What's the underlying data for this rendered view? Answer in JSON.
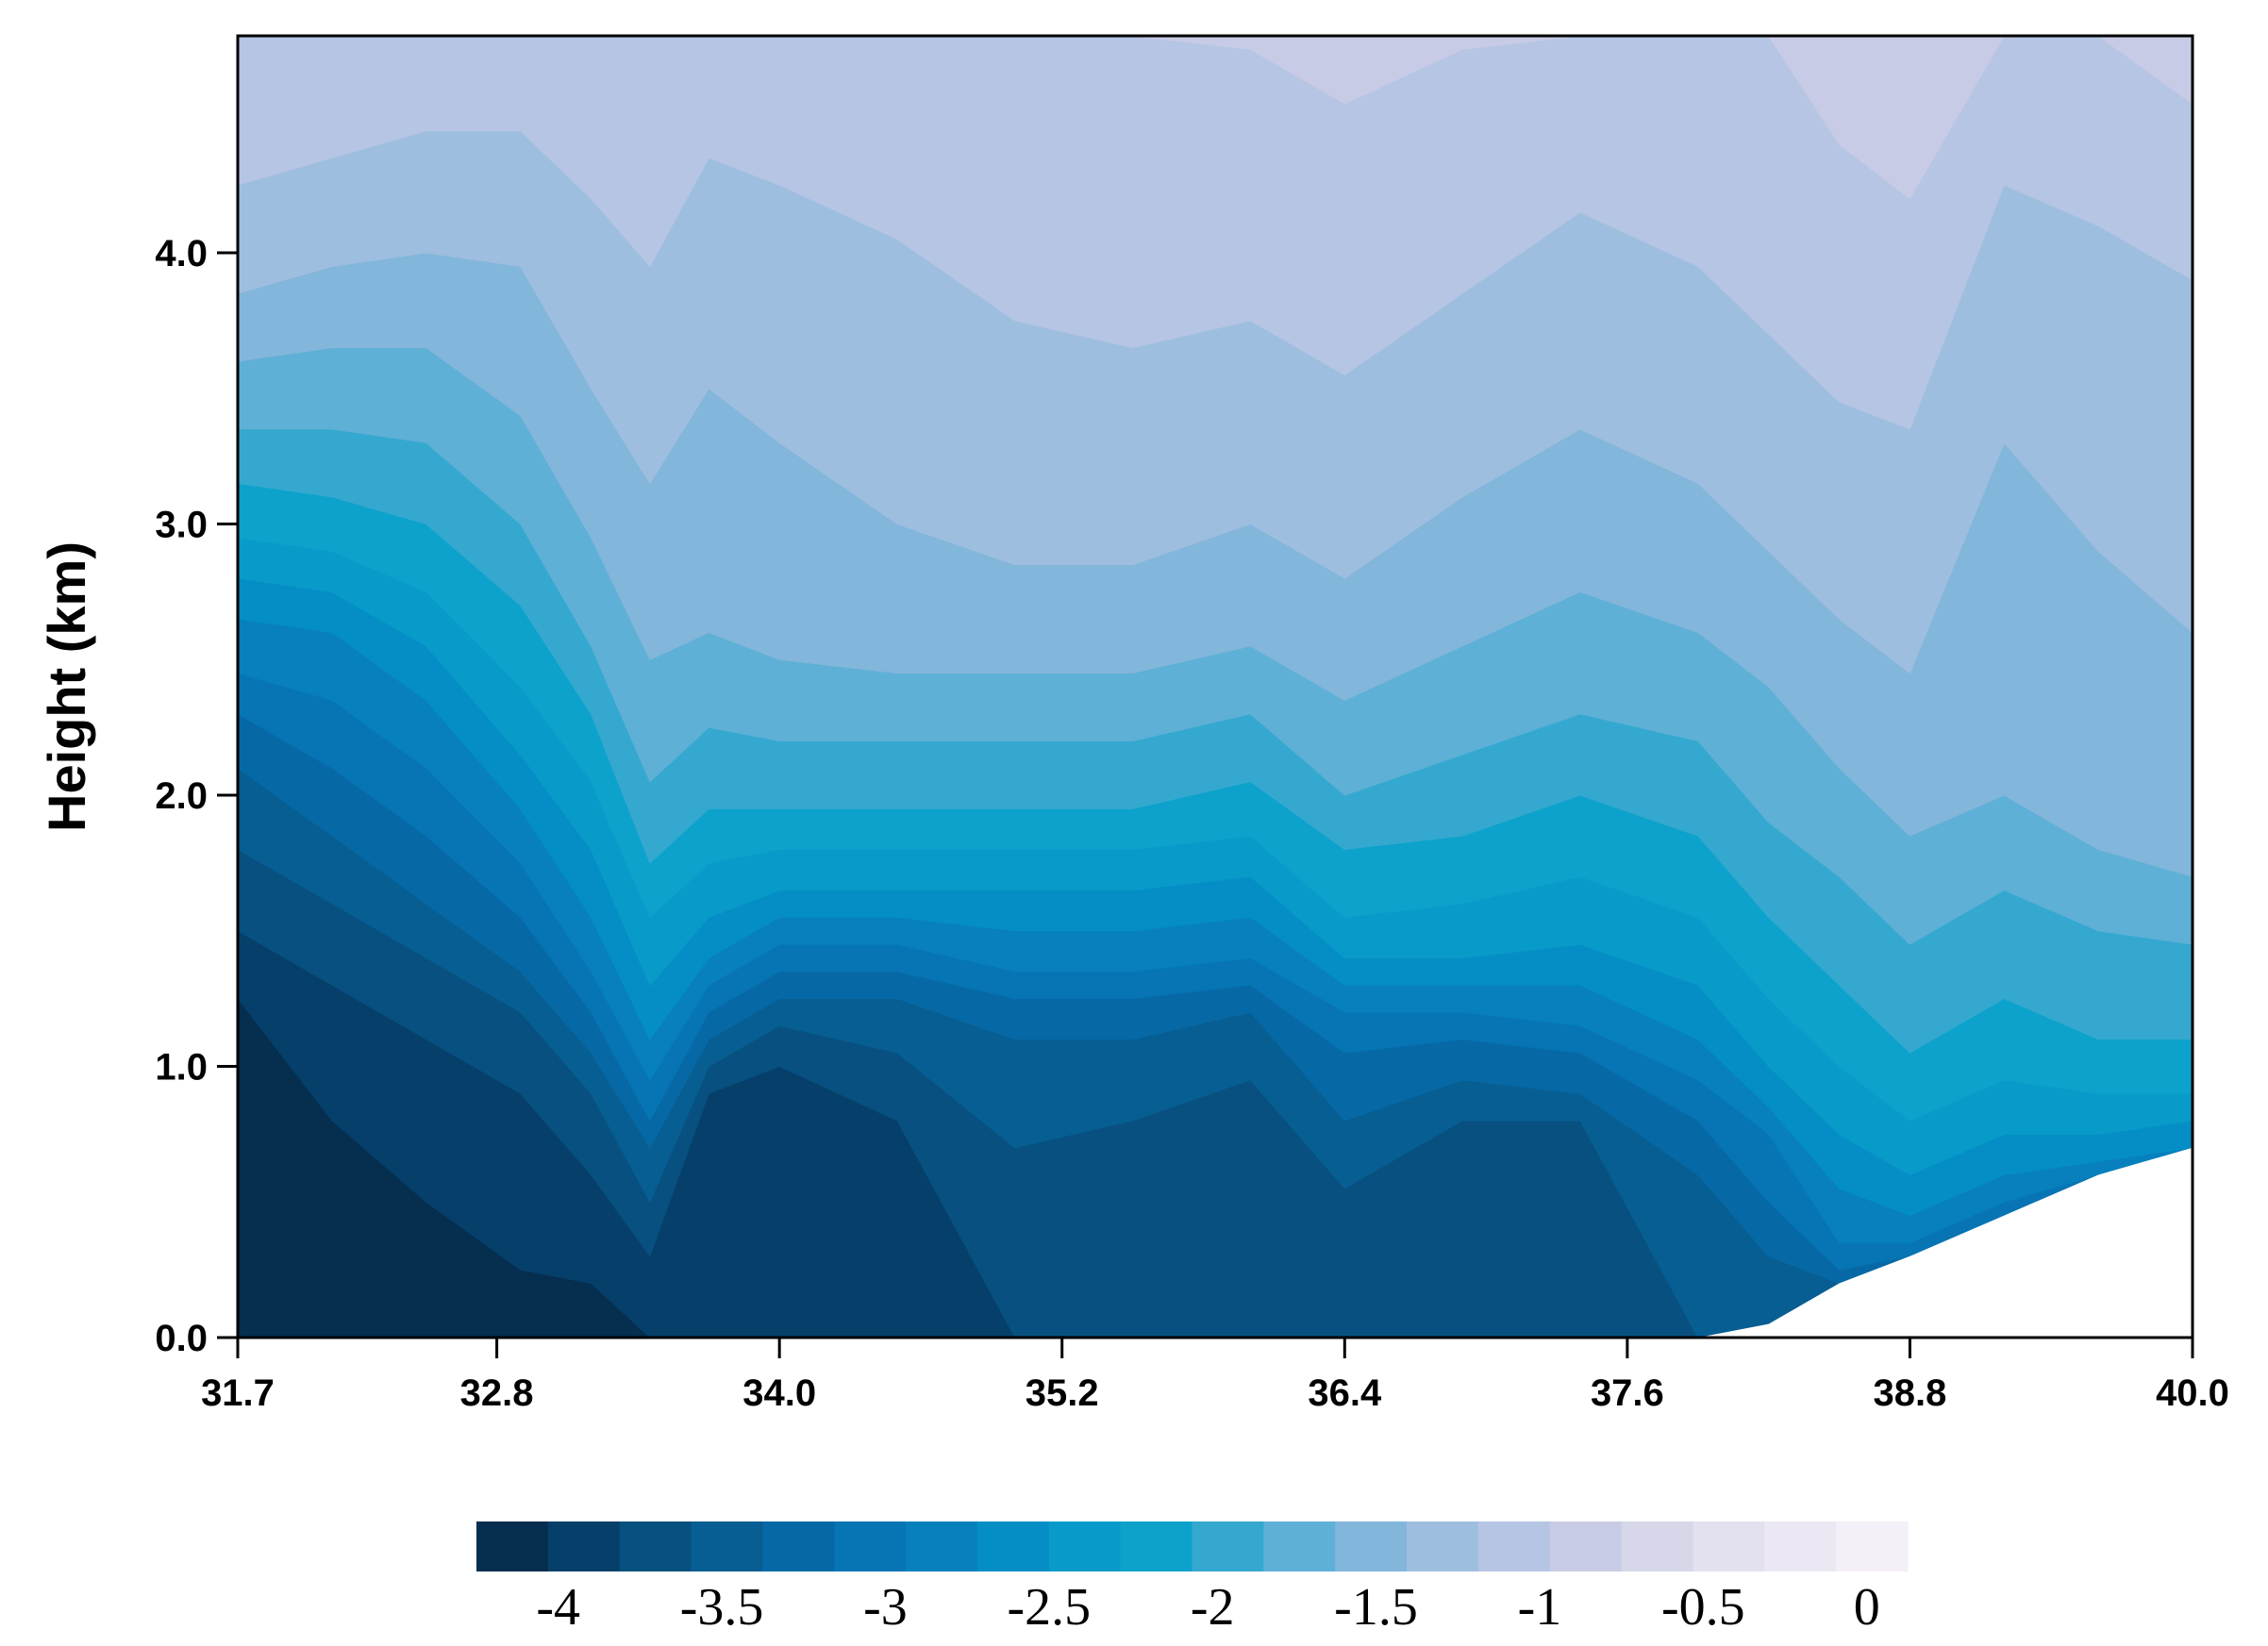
{
  "chart_data": {
    "type": "contour",
    "xlabel": "",
    "ylabel": "Height (km)",
    "xlim": [
      31.7,
      40.0
    ],
    "ylim": [
      0.0,
      4.8
    ],
    "x_ticks": [
      "31.7",
      "32.8",
      "34.0",
      "35.2",
      "36.4",
      "37.6",
      "38.8",
      "40.0"
    ],
    "y_ticks": [
      "0.0",
      "1.0",
      "2.0",
      "3.0",
      "4.0"
    ],
    "colorbar": {
      "min": -4.25,
      "max": 0.125,
      "step": 0.25,
      "ticks": [
        "-4",
        "-3.5",
        "-3",
        "-2.5",
        "-2",
        "-1.5",
        "-1",
        "-0.5",
        "0"
      ],
      "colors": [
        "#052e4f",
        "#063f6a",
        "#07507f",
        "#075e92",
        "#0669a5",
        "#0774b4",
        "#0780bd",
        "#058ec6",
        "#089bc9",
        "#0ca2cb",
        "#35a8d0",
        "#5eb0d6",
        "#82b6da",
        "#9ebedf",
        "#b5c5e3",
        "#c8cbe5",
        "#d7d7ea",
        "#e3e1ef",
        "#ece8f3",
        "#f5eff7"
      ]
    },
    "field": {
      "x": [
        31.7,
        32.1,
        32.5,
        32.9,
        33.2,
        33.45,
        33.7,
        34.0,
        34.5,
        35.0,
        35.5,
        36.0,
        36.4,
        36.9,
        37.4,
        37.9,
        38.2,
        38.5,
        38.8,
        39.2,
        39.6,
        40.0
      ],
      "surface_height_km": [
        0,
        0,
        0,
        0,
        0,
        0,
        0,
        0,
        0,
        0,
        0,
        0,
        0,
        0,
        0,
        0,
        0.05,
        0.2,
        0.3,
        0.45,
        0.6,
        0.7
      ],
      "levels": [
        -4.0,
        -3.75,
        -3.5,
        -3.25,
        -3.0,
        -2.75,
        -2.5,
        -2.25,
        -2.0,
        -1.75,
        -1.5,
        -1.25,
        -1.0,
        -0.75,
        -0.5,
        -0.25
      ],
      "contour_heights_km": [
        [
          1.25,
          0.8,
          0.5,
          0.25,
          0.2,
          0,
          0,
          0,
          0,
          0,
          0,
          0,
          0,
          0,
          0,
          0,
          0,
          0,
          0,
          0,
          0,
          0
        ],
        [
          1.5,
          1.3,
          1.1,
          0.9,
          0.6,
          0.3,
          0.9,
          1.0,
          0.8,
          0.0,
          0.0,
          0.0,
          0.0,
          0.0,
          0.0,
          0.0,
          0,
          0,
          0,
          0,
          0,
          0
        ],
        [
          1.8,
          1.6,
          1.4,
          1.2,
          0.9,
          0.5,
          1.0,
          1.15,
          1.05,
          0.7,
          0.8,
          0.95,
          0.55,
          0.8,
          0.8,
          0.0,
          0,
          0,
          0,
          0,
          0,
          0
        ],
        [
          2.1,
          1.85,
          1.6,
          1.35,
          1.05,
          0.7,
          1.1,
          1.25,
          1.25,
          1.1,
          1.1,
          1.2,
          0.8,
          0.95,
          0.9,
          0.6,
          0.3,
          0.2,
          0.3,
          0.45,
          0.6,
          0.7
        ],
        [
          2.3,
          2.1,
          1.85,
          1.55,
          1.2,
          0.8,
          1.2,
          1.35,
          1.35,
          1.25,
          1.25,
          1.3,
          1.05,
          1.1,
          1.05,
          0.8,
          0.5,
          0.25,
          0.3,
          0.45,
          0.6,
          0.7
        ],
        [
          2.45,
          2.35,
          2.1,
          1.75,
          1.35,
          0.95,
          1.3,
          1.45,
          1.45,
          1.35,
          1.35,
          1.4,
          1.2,
          1.2,
          1.15,
          0.95,
          0.75,
          0.35,
          0.35,
          0.5,
          0.6,
          0.7
        ],
        [
          2.65,
          2.6,
          2.35,
          1.95,
          1.55,
          1.1,
          1.4,
          1.55,
          1.55,
          1.5,
          1.5,
          1.55,
          1.3,
          1.3,
          1.3,
          1.1,
          0.85,
          0.55,
          0.45,
          0.6,
          0.65,
          0.7
        ],
        [
          2.8,
          2.75,
          2.55,
          2.15,
          1.8,
          1.3,
          1.55,
          1.65,
          1.65,
          1.65,
          1.65,
          1.7,
          1.4,
          1.4,
          1.45,
          1.3,
          1.0,
          0.75,
          0.6,
          0.75,
          0.75,
          0.8
        ],
        [
          2.95,
          2.9,
          2.75,
          2.4,
          2.05,
          1.55,
          1.75,
          1.8,
          1.8,
          1.8,
          1.8,
          1.85,
          1.55,
          1.6,
          1.7,
          1.55,
          1.25,
          1.0,
          0.8,
          0.95,
          0.9,
          0.9
        ],
        [
          3.15,
          3.1,
          3.0,
          2.7,
          2.3,
          1.75,
          1.95,
          1.95,
          1.95,
          1.95,
          1.95,
          2.05,
          1.8,
          1.85,
          2.0,
          1.85,
          1.55,
          1.3,
          1.05,
          1.25,
          1.1,
          1.1
        ],
        [
          3.35,
          3.35,
          3.3,
          3.0,
          2.55,
          2.05,
          2.25,
          2.2,
          2.2,
          2.2,
          2.2,
          2.3,
          2.0,
          2.15,
          2.3,
          2.2,
          1.9,
          1.7,
          1.45,
          1.65,
          1.5,
          1.45
        ],
        [
          3.6,
          3.65,
          3.65,
          3.4,
          2.95,
          2.5,
          2.6,
          2.5,
          2.45,
          2.45,
          2.45,
          2.55,
          2.35,
          2.55,
          2.75,
          2.6,
          2.4,
          2.1,
          1.85,
          2.0,
          1.8,
          1.7
        ],
        [
          3.85,
          3.95,
          4.0,
          3.95,
          3.5,
          3.15,
          3.5,
          3.3,
          3.0,
          2.85,
          2.85,
          3.0,
          2.8,
          3.1,
          3.35,
          3.15,
          2.9,
          2.65,
          2.45,
          3.3,
          2.9,
          2.6
        ],
        [
          4.25,
          4.35,
          4.45,
          4.45,
          4.2,
          3.95,
          4.35,
          4.25,
          4.05,
          3.75,
          3.65,
          3.75,
          3.55,
          3.85,
          4.15,
          3.95,
          3.7,
          3.45,
          3.35,
          4.25,
          4.1,
          3.9
        ],
        [
          4.8,
          4.8,
          4.8,
          4.8,
          4.8,
          4.8,
          4.8,
          4.8,
          4.8,
          4.8,
          4.8,
          4.75,
          4.55,
          4.75,
          4.8,
          4.8,
          4.8,
          4.4,
          4.2,
          4.8,
          4.8,
          4.55
        ],
        [
          4.8,
          4.8,
          4.8,
          4.8,
          4.8,
          4.8,
          4.8,
          4.8,
          4.8,
          4.8,
          4.8,
          4.8,
          4.8,
          4.8,
          4.8,
          4.8,
          4.8,
          4.8,
          4.8,
          4.8,
          4.8,
          4.8
        ]
      ]
    }
  }
}
